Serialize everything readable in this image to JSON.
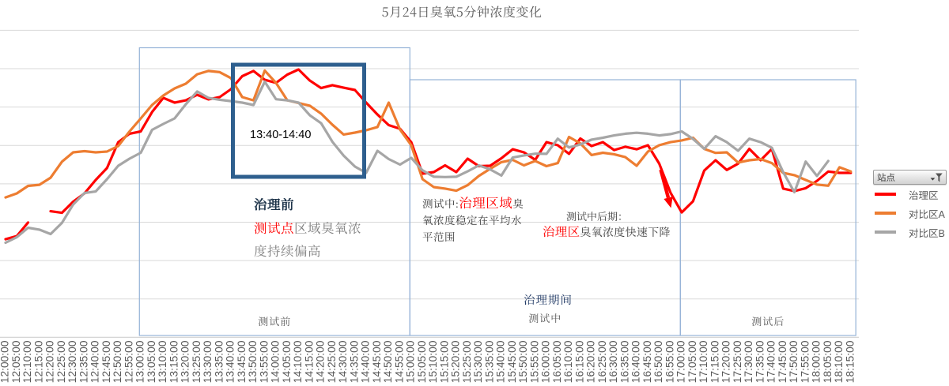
{
  "title": "5月24日臭氧5分钟浓度变化",
  "legend": {
    "filter_button": "站点",
    "filter_icon": "funnel-with-down-arrow",
    "items": [
      {
        "label": "治理区",
        "color": "#FF0000"
      },
      {
        "label": "对比区A",
        "color": "#ED7D31"
      },
      {
        "label": "对比区B",
        "color": "#A6A6A6"
      }
    ]
  },
  "annotations": {
    "highlight_box_label": "13:40-14:40",
    "pre_phase": {
      "title": "治理前",
      "highlight": "测试点",
      "rest": "区域臭氧浓度持续偏高"
    },
    "mid_phase": {
      "prefix": "测试中:",
      "highlight": "治理区域",
      "rest": "臭氧浓度稳定在平均水平范围"
    },
    "late_phase": {
      "line1": "测试中后期：",
      "highlight": "治理区",
      "rest": "臭氧浓度快速下降"
    },
    "period_label": "治理期间"
  },
  "chart_data": {
    "type": "line",
    "x": [
      "12:00:00",
      "12:05:00",
      "12:10:00",
      "12:15:00",
      "12:20:00",
      "12:25:00",
      "12:30:00",
      "12:35:00",
      "12:40:00",
      "12:45:00",
      "12:50:00",
      "12:55:00",
      "13:00:00",
      "13:05:00",
      "13:10:00",
      "13:15:00",
      "13:20:00",
      "13:25:00",
      "13:30:00",
      "13:35:00",
      "13:40:00",
      "13:45:00",
      "13:50:00",
      "13:55:00",
      "14:00:00",
      "14:05:00",
      "14:10:00",
      "14:15:00",
      "14:20:00",
      "14:25:00",
      "14:30:00",
      "14:35:00",
      "14:40:00",
      "14:45:00",
      "14:50:00",
      "14:55:00",
      "15:00:00",
      "15:05:00",
      "15:10:00",
      "15:15:00",
      "15:20:00",
      "15:25:00",
      "15:30:00",
      "15:35:00",
      "15:40:00",
      "15:45:00",
      "15:50:00",
      "15:55:00",
      "16:00:00",
      "16:05:00",
      "16:10:00",
      "16:15:00",
      "16:20:00",
      "16:25:00",
      "16:30:00",
      "16:35:00",
      "16:40:00",
      "16:45:00",
      "16:50:00",
      "16:55:00",
      "17:00:00",
      "17:05:00",
      "17:10:00",
      "17:15:00",
      "17:20:00",
      "17:25:00",
      "17:30:00",
      "17:35:00",
      "17:40:00",
      "17:45:00",
      "17:50:00",
      "17:55:00",
      "18:00:00",
      "18:05:00",
      "18:10:00",
      "18:15:00"
    ],
    "series": [
      {
        "name": "治理区",
        "color": "#FF0000",
        "values": [
          51.1,
          52.8,
          59.8,
          null,
          65.7,
          64.9,
          70.7,
          75.0,
          82.0,
          88.2,
          101.7,
          106.1,
          107.3,
          117.4,
          124.8,
          122.3,
          123.5,
          126.4,
          124.0,
          125.2,
          129.3,
          136.1,
          138.8,
          134.2,
          132.6,
          136.9,
          139.6,
          133.8,
          129.9,
          131.4,
          130.1,
          128.9,
          122.3,
          116.1,
          110.6,
          108.7,
          101.7,
          85.3,
          86.1,
          89.6,
          86.1,
          93.1,
          89.2,
          89.4,
          93.3,
          98.0,
          96.4,
          92.5,
          101.7,
          100.1,
          95.6,
          103.6,
          99.7,
          101.7,
          97.6,
          99.3,
          98.0,
          100.1,
          90.6,
          75.4,
          65.1,
          70.9,
          86.9,
          92.3,
          87.2,
          90.5,
          98.2,
          92.3,
          98.2,
          77.5,
          76.2,
          77.7,
          81.5,
          86.4,
          85.7,
          85.7
        ]
      },
      {
        "name": "对比区A",
        "color": "#ED7D31",
        "values": [
          72.9,
          75.0,
          78.9,
          79.5,
          83.2,
          91.5,
          96.4,
          97.0,
          96.4,
          96.8,
          99.7,
          107.3,
          114.1,
          121.1,
          126.0,
          129.7,
          132.2,
          137.1,
          138.8,
          138.2,
          135.1,
          125.2,
          123.5,
          139.0,
          132.6,
          123.5,
          122.1,
          120.7,
          116.6,
          110.8,
          105.7,
          106.7,
          107.9,
          109.6,
          122.3,
          108.3,
          100.1,
          82.4,
          78.3,
          77.5,
          76.4,
          79.3,
          84.1,
          87.8,
          91.3,
          92.5,
          89.6,
          91.9,
          89.2,
          90.8,
          104.4,
          101.1,
          95.0,
          96.2,
          95.4,
          93.9,
          89.4,
          96.8,
          100.1,
          101.7,
          102.6,
          104.0,
          98.2,
          96.1,
          96.4,
          91.1,
          92.3,
          92.9,
          90.8,
          85.7,
          84.5,
          82.0,
          79.6,
          79.0,
          88.6,
          86.4
        ]
      },
      {
        "name": "对比区B",
        "color": "#A6A6A6",
        "values": [
          49.3,
          52.2,
          57.1,
          56.1,
          53.8,
          59.6,
          69.2,
          75.2,
          76.0,
          82.4,
          89.4,
          93.1,
          96.2,
          108.1,
          111.2,
          114.1,
          121.5,
          128.1,
          124.8,
          123.8,
          123.1,
          122.3,
          121.1,
          133.2,
          124.1,
          123.5,
          122.3,
          115.7,
          111.6,
          101.9,
          94.7,
          89.0,
          85.7,
          97.2,
          92.9,
          90.0,
          93.5,
          87.0,
          83.7,
          83.5,
          83.7,
          86.5,
          89.6,
          87.5,
          84.3,
          93.7,
          94.8,
          95.7,
          95.6,
          103.5,
          98.9,
          100.5,
          103.0,
          104.0,
          105.2,
          106.1,
          106.6,
          106.1,
          105.2,
          105.9,
          107.3,
          103.4,
          98.2,
          104.8,
          101.7,
          97.2,
          103.5,
          101.7,
          98.8,
          86.1,
          75.6,
          91.6,
          84.1,
          91.9,
          null,
          null
        ]
      }
    ],
    "ylim": [
      0,
      160
    ],
    "y_axis_labels_visible": false,
    "gridline_step": 20,
    "grid": true,
    "legend_position": "right",
    "zones": [
      {
        "label": "测试前",
        "from": "13:00:00",
        "to": "15:00:00"
      },
      {
        "label": "测试中",
        "from": "15:00:00",
        "to": "17:00:00"
      },
      {
        "label": "测试后",
        "from": "17:00:00",
        "to": "18:15:00"
      }
    ],
    "highlight_box": {
      "label": "13:40-14:40",
      "from": "13:40:00",
      "to": "14:40:00"
    },
    "arrow": {
      "color": "#FF0000",
      "meaning": "rapid-drop-pointer"
    }
  }
}
